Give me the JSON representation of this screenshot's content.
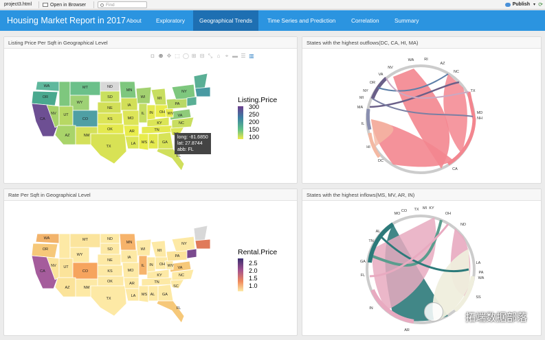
{
  "toolbar": {
    "file_name": "project3.html",
    "open_browser": "Open in Browser",
    "find_placeholder": "Find",
    "publish": "Publish"
  },
  "navbar": {
    "brand": "Housing Market Report in 2017",
    "tabs": [
      {
        "label": "About"
      },
      {
        "label": "Exploratory"
      },
      {
        "label": "Geographical Trends"
      },
      {
        "label": "Time Series and Prediction"
      },
      {
        "label": "Correlation"
      },
      {
        "label": "Summary"
      }
    ],
    "active_tab": "Geographical Trends"
  },
  "panels": {
    "listing": {
      "title": "Listing Price Per Sqft in Geographical Level",
      "legend_title": "Listing.Price",
      "legend_ticks": [
        "300",
        "250",
        "200",
        "150",
        "100"
      ],
      "tooltip": {
        "long": "long:  -81.6850",
        "lat": "lat: 27.8744",
        "abb": "abb: FL"
      }
    },
    "rate": {
      "title": "Rate Per Sqft in Geographical Level",
      "legend_title": "Rental.Price",
      "legend_ticks": [
        "2.5",
        "2.0",
        "1.5",
        "1.0"
      ]
    },
    "outflows": {
      "title": "States with the highest outflows(DC, CA, HI, MA)"
    },
    "inflows": {
      "title": "States with the highest inflows(MS, MV, AR, IN)"
    }
  },
  "chart_data": [
    {
      "type": "chord",
      "title": "States with the highest outflows(DC, CA, HI, MA)",
      "labels": [
        "WA",
        "RI",
        "AZ",
        "NC",
        "TX",
        "MD",
        "NH",
        "CA",
        "DC",
        "HI",
        "IL",
        "MA",
        "MI",
        "NY",
        "OR",
        "VA",
        "NV"
      ],
      "colors": {
        "CA": "#f3868f",
        "DC": "#f4b8a2",
        "HI": "#7a7fa3",
        "MA": "#68628a",
        "accent": "#5c7fa8"
      }
    },
    {
      "type": "chord",
      "title": "States with the highest inflows(MS, MV, AR, IN)",
      "labels": [
        "CO",
        "MO",
        "TX",
        "MI",
        "KY",
        "OH",
        "ND",
        "LA",
        "PA",
        "WA",
        "SS",
        "AR",
        "IN",
        "FL",
        "GA",
        "TN",
        "AL"
      ],
      "colors": {
        "AR": "#2c7a7a",
        "IN": "#5a9d8e",
        "MS": "#e8aac0",
        "MV": "#efeedd"
      }
    }
  ],
  "watermark": "拓端数据部落"
}
